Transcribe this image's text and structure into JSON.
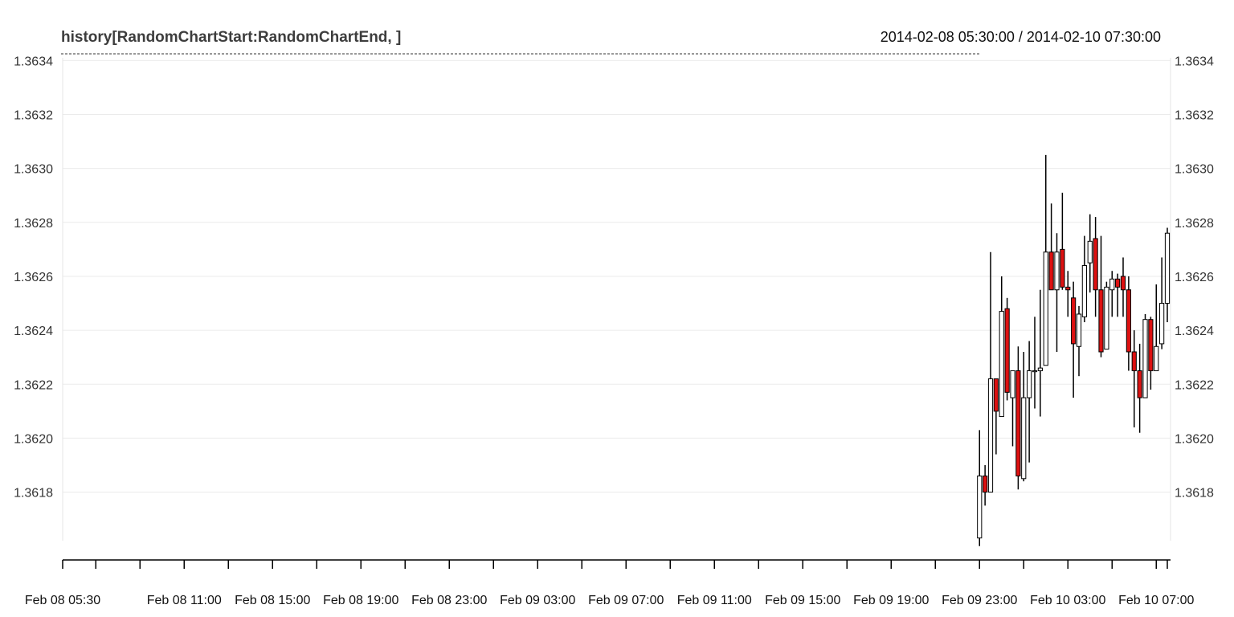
{
  "chart_data": {
    "type": "candlestick",
    "title": "history[RandomChartStart:RandomChartEnd, ]",
    "date_range": "2014-02-08 05:30:00 / 2014-02-10 07:30:00",
    "y_ticks": [
      "1.3618",
      "1.3620",
      "1.3622",
      "1.3624",
      "1.3626",
      "1.3628",
      "1.3630",
      "1.3632",
      "1.3634"
    ],
    "y_tick_values": [
      1.3618,
      1.362,
      1.3622,
      1.3624,
      1.3626,
      1.3628,
      1.363,
      1.3632,
      1.3634
    ],
    "ylim": [
      1.36162,
      1.36341
    ],
    "x_labels": [
      "Feb 08 05:30",
      "Feb 08 11:00",
      "Feb 08 15:00",
      "Feb 08 19:00",
      "Feb 08 23:00",
      "Feb 09 03:00",
      "Feb 09 07:00",
      "Feb 09 11:00",
      "Feb 09 15:00",
      "Feb 09 19:00",
      "Feb 09 23:00",
      "Feb 10 03:00",
      "Feb 10 07:00"
    ],
    "x_label_hours": [
      0,
      5.5,
      9.5,
      13.5,
      17.5,
      21.5,
      25.5,
      29.5,
      33.5,
      37.5,
      41.5,
      45.5,
      49.5
    ],
    "x_major_tick_hours": [
      0,
      1.5,
      3.5,
      5.5,
      7.5,
      9.5,
      11.5,
      13.5,
      15.5,
      17.5,
      19.5,
      21.5,
      23.5,
      25.5,
      27.5,
      29.5,
      31.5,
      33.5,
      35.5,
      37.5,
      39.5,
      41.5,
      43.5,
      45.5,
      47.5,
      49.5,
      50
    ],
    "x_range_hours": [
      0,
      53
    ],
    "grid": true,
    "up_color": "#ffffff",
    "down_color": "#dd1111",
    "candle_border": "#000000",
    "candles": [
      {
        "t": 41.5,
        "o": 1.36163,
        "h": 1.36203,
        "l": 1.3616,
        "c": 1.36186
      },
      {
        "t": 41.75,
        "o": 1.36186,
        "h": 1.3619,
        "l": 1.36175,
        "c": 1.3618
      },
      {
        "t": 42.0,
        "o": 1.3618,
        "h": 1.36269,
        "l": 1.3618,
        "c": 1.36222
      },
      {
        "t": 42.25,
        "o": 1.36222,
        "h": 1.36222,
        "l": 1.36194,
        "c": 1.3621
      },
      {
        "t": 42.5,
        "o": 1.36208,
        "h": 1.3626,
        "l": 1.36208,
        "c": 1.36247
      },
      {
        "t": 42.75,
        "o": 1.36248,
        "h": 1.36252,
        "l": 1.36214,
        "c": 1.36217
      },
      {
        "t": 43.0,
        "o": 1.36215,
        "h": 1.36225,
        "l": 1.36197,
        "c": 1.36225
      },
      {
        "t": 43.25,
        "o": 1.36225,
        "h": 1.36234,
        "l": 1.36181,
        "c": 1.36186
      },
      {
        "t": 43.5,
        "o": 1.36185,
        "h": 1.36232,
        "l": 1.36184,
        "c": 1.36215
      },
      {
        "t": 43.75,
        "o": 1.36215,
        "h": 1.36236,
        "l": 1.36191,
        "c": 1.36225
      },
      {
        "t": 44.0,
        "o": 1.36225,
        "h": 1.36245,
        "l": 1.36211,
        "c": 1.36225
      },
      {
        "t": 44.25,
        "o": 1.36225,
        "h": 1.36255,
        "l": 1.36208,
        "c": 1.36226
      },
      {
        "t": 44.5,
        "o": 1.36227,
        "h": 1.36305,
        "l": 1.36227,
        "c": 1.36269
      },
      {
        "t": 44.75,
        "o": 1.36269,
        "h": 1.36287,
        "l": 1.36255,
        "c": 1.36255
      },
      {
        "t": 45.0,
        "o": 1.36255,
        "h": 1.36276,
        "l": 1.36232,
        "c": 1.36269
      },
      {
        "t": 45.25,
        "o": 1.3627,
        "h": 1.36291,
        "l": 1.36255,
        "c": 1.36256
      },
      {
        "t": 45.5,
        "o": 1.36256,
        "h": 1.36262,
        "l": 1.36245,
        "c": 1.36255
      },
      {
        "t": 45.75,
        "o": 1.36252,
        "h": 1.36258,
        "l": 1.36215,
        "c": 1.36235
      },
      {
        "t": 46.0,
        "o": 1.36234,
        "h": 1.36249,
        "l": 1.36223,
        "c": 1.36246
      },
      {
        "t": 46.25,
        "o": 1.36245,
        "h": 1.36275,
        "l": 1.36243,
        "c": 1.36264
      },
      {
        "t": 46.5,
        "o": 1.36265,
        "h": 1.36283,
        "l": 1.36254,
        "c": 1.36273
      },
      {
        "t": 46.75,
        "o": 1.36274,
        "h": 1.36282,
        "l": 1.36245,
        "c": 1.36255
      },
      {
        "t": 47.0,
        "o": 1.36255,
        "h": 1.36275,
        "l": 1.3623,
        "c": 1.36232
      },
      {
        "t": 47.25,
        "o": 1.36233,
        "h": 1.36258,
        "l": 1.36233,
        "c": 1.36256
      },
      {
        "t": 47.5,
        "o": 1.36255,
        "h": 1.36262,
        "l": 1.36245,
        "c": 1.36259
      },
      {
        "t": 47.75,
        "o": 1.36259,
        "h": 1.36261,
        "l": 1.36245,
        "c": 1.36256
      },
      {
        "t": 48.0,
        "o": 1.3626,
        "h": 1.36267,
        "l": 1.36245,
        "c": 1.36255
      },
      {
        "t": 48.25,
        "o": 1.36255,
        "h": 1.3626,
        "l": 1.36225,
        "c": 1.36232
      },
      {
        "t": 48.5,
        "o": 1.36232,
        "h": 1.3624,
        "l": 1.36204,
        "c": 1.36225
      },
      {
        "t": 48.75,
        "o": 1.36225,
        "h": 1.36235,
        "l": 1.36202,
        "c": 1.36215
      },
      {
        "t": 49.0,
        "o": 1.36215,
        "h": 1.36246,
        "l": 1.36215,
        "c": 1.36244
      },
      {
        "t": 49.25,
        "o": 1.36244,
        "h": 1.36245,
        "l": 1.36218,
        "c": 1.36225
      },
      {
        "t": 49.5,
        "o": 1.36225,
        "h": 1.36257,
        "l": 1.36225,
        "c": 1.36234
      },
      {
        "t": 49.75,
        "o": 1.36235,
        "h": 1.36267,
        "l": 1.36233,
        "c": 1.3625
      },
      {
        "t": 50.0,
        "o": 1.3625,
        "h": 1.36278,
        "l": 1.36243,
        "c": 1.36276
      }
    ]
  }
}
